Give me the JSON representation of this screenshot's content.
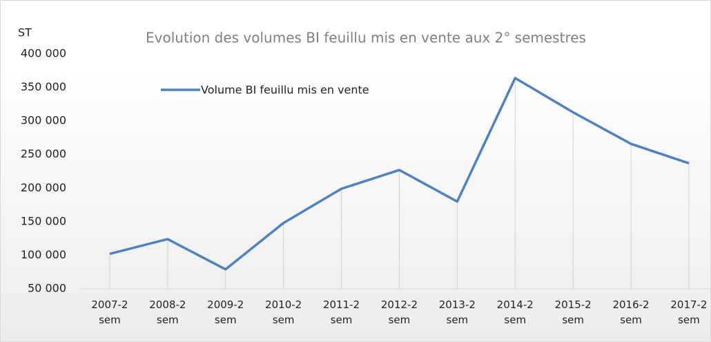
{
  "chart_data": {
    "type": "line",
    "title": "Evolution des volumes BI feuillu mis en vente aux 2° semestres",
    "y_label": "ST",
    "categories": [
      "2007-2 sem",
      "2008-2 sem",
      "2009-2 sem",
      "2010-2 sem",
      "2011-2 sem",
      "2012-2 sem",
      "2013-2 sem",
      "2014-2 sem",
      "2015-2 sem",
      "2016-2 sem",
      "2017-2 sem"
    ],
    "series": [
      {
        "name": "Volume BI feuillu mis en vente",
        "color": "#4f81bd",
        "values": [
          102000,
          124000,
          79000,
          148000,
          199000,
          227000,
          180000,
          364000,
          313000,
          266000,
          237000
        ]
      }
    ],
    "ylim": [
      50000,
      400000
    ],
    "yticks": [
      {
        "value": 50000,
        "label": "50 000"
      },
      {
        "value": 100000,
        "label": "100 000"
      },
      {
        "value": 150000,
        "label": "150 000"
      },
      {
        "value": 200000,
        "label": "200 000"
      },
      {
        "value": 250000,
        "label": "250 000"
      },
      {
        "value": 300000,
        "label": "300 000"
      },
      {
        "value": 350000,
        "label": "350 000"
      },
      {
        "value": 400000,
        "label": "400 000"
      }
    ],
    "drop_lines": true
  }
}
